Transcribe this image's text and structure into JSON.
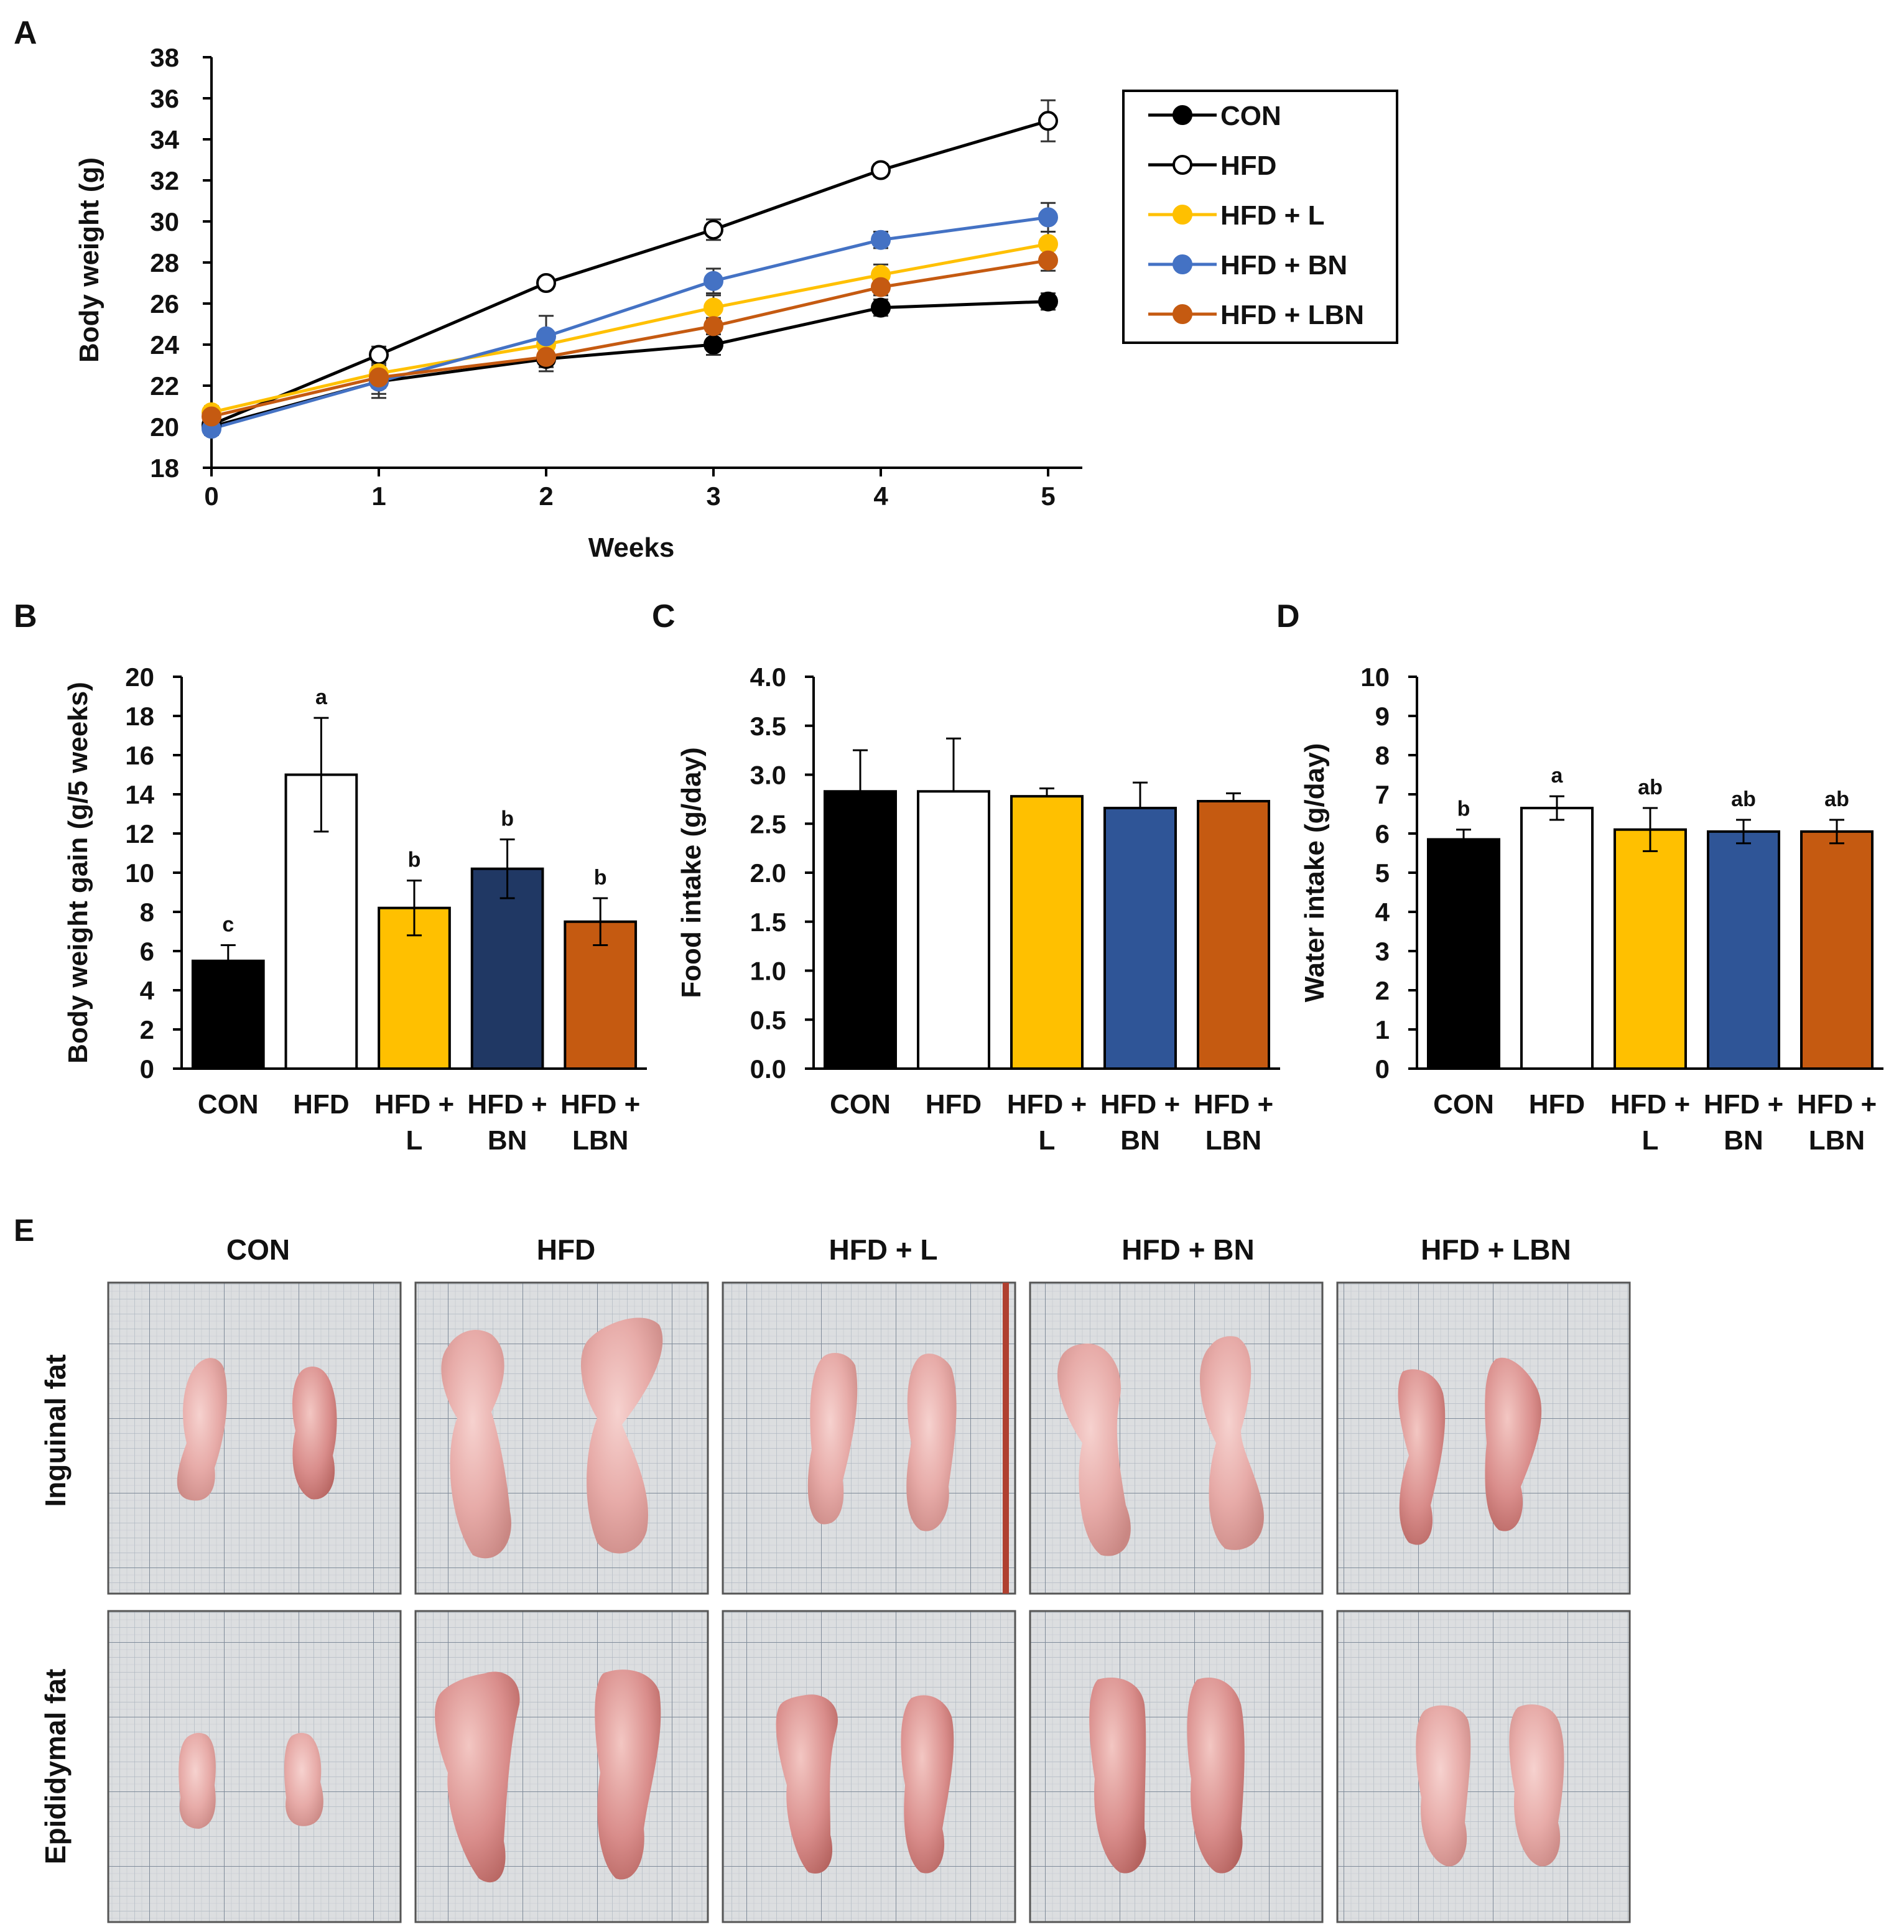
{
  "colors": {
    "con": "#000000",
    "hfd": "#ffffff",
    "hfd_l": "#ffc000",
    "hfd_bn_line": "#4472c4",
    "hfd_bn_bar_b": "#203864",
    "hfd_bn_bar_cd": "#2f5597",
    "hfd_lbn": "#c55a11",
    "axis": "#000000",
    "paper": "#d9dbdc",
    "grid": "#9aa6b4"
  },
  "chart_data": [
    {
      "panel": "A",
      "type": "line",
      "xlabel": "Weeks",
      "ylabel": "Body weight (g)",
      "x": [
        0,
        1,
        2,
        3,
        4,
        5
      ],
      "xticks": [
        "0",
        "1",
        "2",
        "3",
        "4",
        "5"
      ],
      "ylim": [
        18,
        38
      ],
      "yticks": [
        "18",
        "20",
        "22",
        "24",
        "26",
        "28",
        "30",
        "32",
        "34",
        "36",
        "38"
      ],
      "legend_position": "top-right",
      "series": [
        {
          "name": "CON",
          "color": "#000000",
          "fill": "#000000",
          "values": [
            20.0,
            22.2,
            23.3,
            24.0,
            25.8,
            26.1
          ],
          "err": [
            0.3,
            0.8,
            0.6,
            0.5,
            0.4,
            0.4
          ]
        },
        {
          "name": "HFD",
          "color": "#000000",
          "fill": "#ffffff",
          "values": [
            20.1,
            23.5,
            27.0,
            29.6,
            32.5,
            34.9
          ],
          "err": [
            0.3,
            0.4,
            0.3,
            0.5,
            0.3,
            1.0
          ]
        },
        {
          "name": "HFD + L",
          "color": "#ffc000",
          "fill": "#ffc000",
          "values": [
            20.7,
            22.6,
            24.0,
            25.8,
            27.4,
            28.9
          ],
          "err": [
            0.3,
            0.4,
            0.5,
            0.6,
            0.5,
            0.6
          ]
        },
        {
          "name": "HFD + BN",
          "color": "#4472c4",
          "fill": "#4472c4",
          "values": [
            19.9,
            22.2,
            24.4,
            27.1,
            29.1,
            30.2
          ],
          "err": [
            0.3,
            0.6,
            1.0,
            0.6,
            0.4,
            0.7
          ]
        },
        {
          "name": "HFD + LBN",
          "color": "#c55a11",
          "fill": "#c55a11",
          "values": [
            20.5,
            22.4,
            23.4,
            24.9,
            26.8,
            28.1
          ],
          "err": [
            0.3,
            0.5,
            0.5,
            0.4,
            0.4,
            0.5
          ]
        }
      ]
    },
    {
      "panel": "B",
      "type": "bar",
      "ylabel": "Body weight gain (g/5 weeks)",
      "categories": [
        "CON",
        "HFD",
        "HFD + L",
        "HFD + BN",
        "HFD + LBN"
      ],
      "category_lines": [
        [
          "CON"
        ],
        [
          "HFD"
        ],
        [
          "HFD +",
          "L"
        ],
        [
          "HFD +",
          "BN"
        ],
        [
          "HFD +",
          "LBN"
        ]
      ],
      "values": [
        5.5,
        15.0,
        8.2,
        10.2,
        7.5
      ],
      "err": [
        0.8,
        2.9,
        1.4,
        1.5,
        1.2
      ],
      "letters": [
        "c",
        "a",
        "b",
        "b",
        "b"
      ],
      "colors": [
        "#000000",
        "#ffffff",
        "#ffc000",
        "#203864",
        "#c55a11"
      ],
      "ylim": [
        0,
        20
      ],
      "yticks": [
        "0",
        "2",
        "4",
        "6",
        "8",
        "10",
        "12",
        "14",
        "16",
        "18",
        "20"
      ]
    },
    {
      "panel": "C",
      "type": "bar",
      "ylabel": "Food intake (g/day)",
      "categories": [
        "CON",
        "HFD",
        "HFD + L",
        "HFD + BN",
        "HFD + LBN"
      ],
      "category_lines": [
        [
          "CON"
        ],
        [
          "HFD"
        ],
        [
          "HFD +",
          "L"
        ],
        [
          "HFD +",
          "BN"
        ],
        [
          "HFD +",
          "LBN"
        ]
      ],
      "values": [
        2.83,
        2.83,
        2.78,
        2.66,
        2.73
      ],
      "err": [
        0.42,
        0.54,
        0.08,
        0.26,
        0.08
      ],
      "letters": [
        "",
        "",
        "",
        "",
        ""
      ],
      "colors": [
        "#000000",
        "#ffffff",
        "#ffc000",
        "#2f5597",
        "#c55a11"
      ],
      "ylim": [
        0,
        4
      ],
      "yticks": [
        "0.0",
        "0.5",
        "1.0",
        "1.5",
        "2.0",
        "2.5",
        "3.0",
        "3.5",
        "4.0"
      ]
    },
    {
      "panel": "D",
      "type": "bar",
      "ylabel": "Water intake (g/day)",
      "categories": [
        "CON",
        "HFD",
        "HFD + L",
        "HFD + BN",
        "HFD + LBN"
      ],
      "category_lines": [
        [
          "CON"
        ],
        [
          "HFD"
        ],
        [
          "HFD +",
          "L"
        ],
        [
          "HFD +",
          "BN"
        ],
        [
          "HFD +",
          "LBN"
        ]
      ],
      "values": [
        5.85,
        6.65,
        6.1,
        6.05,
        6.05
      ],
      "err": [
        0.25,
        0.3,
        0.55,
        0.3,
        0.3
      ],
      "letters": [
        "b",
        "a",
        "ab",
        "ab",
        "ab"
      ],
      "colors": [
        "#000000",
        "#ffffff",
        "#ffc000",
        "#2f5597",
        "#c55a11"
      ],
      "ylim": [
        0,
        10
      ],
      "yticks": [
        "0",
        "1",
        "2",
        "3",
        "4",
        "5",
        "6",
        "7",
        "8",
        "9",
        "10"
      ]
    }
  ],
  "panel_e": {
    "label": "E",
    "column_headers": [
      "CON",
      "HFD",
      "HFD + L",
      "HFD + BN",
      "HFD + LBN"
    ],
    "row_labels": [
      "Inguinal fat",
      "Epididymal fat"
    ]
  },
  "panel_labels": [
    "A",
    "B",
    "C",
    "D"
  ]
}
